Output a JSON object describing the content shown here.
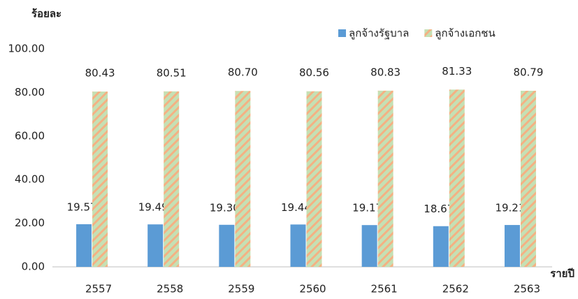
{
  "chart_data": {
    "type": "bar",
    "y_axis_label": "ร้อยละ",
    "x_axis_label": "รายปี",
    "categories": [
      "2557",
      "2558",
      "2559",
      "2560",
      "2561",
      "2562",
      "2563"
    ],
    "series": [
      {
        "name": "ลูกจ้างรัฐบาล",
        "color": "#5b9bd5",
        "values": [
          19.57,
          19.49,
          19.3,
          19.44,
          19.17,
          18.67,
          19.21
        ],
        "value_labels": [
          "19.57",
          "19.49",
          "19.30",
          "19.44",
          "19.17",
          "18.67",
          "19.21"
        ]
      },
      {
        "name": "ลูกจ้างเอกชน",
        "color": "#c5e0b4",
        "hatch_color": "#f4b183",
        "values": [
          80.43,
          80.51,
          80.7,
          80.56,
          80.83,
          81.33,
          80.79
        ],
        "value_labels": [
          "80.43",
          "80.51",
          "80.70",
          "80.56",
          "80.83",
          "81.33",
          "80.79"
        ]
      }
    ],
    "ylim": [
      0,
      100
    ],
    "yticks": [
      {
        "value": 0,
        "label": "0.00"
      },
      {
        "value": 20,
        "label": "20.00"
      },
      {
        "value": 40,
        "label": "40.00"
      },
      {
        "value": 60,
        "label": "60.00"
      },
      {
        "value": 80,
        "label": "80.00"
      },
      {
        "value": 100,
        "label": "100.00"
      }
    ],
    "grid": false,
    "legend": "top-right"
  }
}
